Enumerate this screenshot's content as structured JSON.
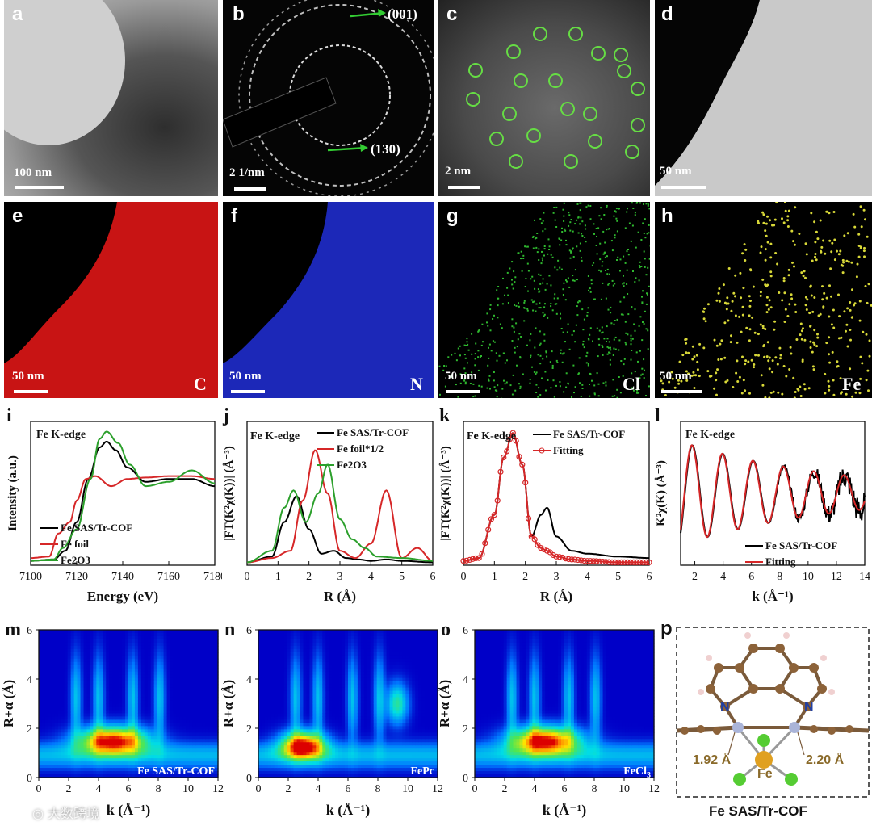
{
  "panels": {
    "a": {
      "label": "a",
      "scale": "100 nm"
    },
    "b": {
      "label": "b",
      "scale": "2 1/nm",
      "ring1": "(001)",
      "ring2": "(130)"
    },
    "c": {
      "label": "c",
      "scale": "2 nm"
    },
    "d": {
      "label": "d",
      "scale": "50 nm"
    },
    "e": {
      "label": "e",
      "scale": "50 nm",
      "element": "C"
    },
    "f": {
      "label": "f",
      "scale": "50 nm",
      "element": "N"
    },
    "g": {
      "label": "g",
      "scale": "50 nm",
      "element": "Cl"
    },
    "h": {
      "label": "h",
      "scale": "50 nm",
      "element": "Fe"
    },
    "i": {
      "label": "i"
    },
    "j": {
      "label": "j"
    },
    "k": {
      "label": "k"
    },
    "l": {
      "label": "l"
    },
    "m": {
      "label": "m",
      "tag": "Fe SAS/Tr-COF"
    },
    "n": {
      "label": "n",
      "tag": "FePc"
    },
    "o": {
      "label": "o",
      "tag": "FeCl3"
    },
    "p": {
      "label": "p",
      "n1": "N",
      "n2": "N",
      "fe": "Fe",
      "d1": "1.92 Å",
      "d2": "2.20 Å",
      "caption": "Fe SAS/Tr-COF"
    }
  },
  "watermark": "大数跨境",
  "chart_data": [
    {
      "id": "i",
      "type": "line",
      "title": "Fe K-edge",
      "xlabel": "Energy (eV)",
      "ylabel": "Intensity (a.u.)",
      "xlim": [
        7100,
        7180
      ],
      "xticks": [
        7100,
        7120,
        7140,
        7160,
        7180
      ],
      "series": [
        {
          "name": "Fe SAS/Tr-COF",
          "color": "#000000",
          "x": [
            7100,
            7110,
            7115,
            7120,
            7125,
            7130,
            7133,
            7137,
            7142,
            7150,
            7160,
            7170,
            7180
          ],
          "y": [
            0.03,
            0.04,
            0.1,
            0.3,
            0.6,
            0.82,
            0.86,
            0.8,
            0.68,
            0.58,
            0.6,
            0.6,
            0.55
          ]
        },
        {
          "name": "Fe foil",
          "color": "#d62728",
          "x": [
            7100,
            7108,
            7112,
            7117,
            7120,
            7124,
            7128,
            7135,
            7142,
            7150,
            7160,
            7170,
            7180
          ],
          "y": [
            0.05,
            0.06,
            0.22,
            0.3,
            0.45,
            0.6,
            0.62,
            0.55,
            0.6,
            0.61,
            0.62,
            0.62,
            0.6
          ]
        },
        {
          "name": "Fe2O3",
          "color": "#2ca02c",
          "x": [
            7100,
            7110,
            7114,
            7120,
            7126,
            7130,
            7133,
            7138,
            7143,
            7150,
            7160,
            7170,
            7180
          ],
          "y": [
            0.03,
            0.04,
            0.12,
            0.25,
            0.6,
            0.88,
            0.93,
            0.85,
            0.7,
            0.55,
            0.58,
            0.66,
            0.57
          ]
        }
      ]
    },
    {
      "id": "j",
      "type": "line",
      "title": "Fe K-edge",
      "xlabel": "R (Å)",
      "ylabel": "|FT(K²χ(K))| (Å⁻³)",
      "xlim": [
        0,
        6
      ],
      "xticks": [
        0,
        1,
        2,
        3,
        4,
        5,
        6
      ],
      "series": [
        {
          "name": "Fe SAS/Tr-COF",
          "color": "#000000",
          "x": [
            0,
            0.8,
            1.2,
            1.6,
            2.0,
            2.4,
            2.8,
            3.2,
            3.6,
            4.0,
            4.5,
            5.0,
            6
          ],
          "y": [
            0.02,
            0.06,
            0.3,
            0.48,
            0.25,
            0.08,
            0.1,
            0.05,
            0.04,
            0.03,
            0.04,
            0.03,
            0.02
          ]
        },
        {
          "name": "Fe foil*1/2",
          "color": "#d62728",
          "x": [
            0,
            0.8,
            1.4,
            1.8,
            2.2,
            2.6,
            3.0,
            3.5,
            4.0,
            4.5,
            5.0,
            5.5,
            6
          ],
          "y": [
            0.02,
            0.05,
            0.1,
            0.45,
            0.8,
            0.5,
            0.1,
            0.05,
            0.15,
            0.52,
            0.05,
            0.12,
            0.03
          ]
        },
        {
          "name": "Fe2O3",
          "color": "#2ca02c",
          "x": [
            0,
            0.8,
            1.2,
            1.5,
            1.9,
            2.3,
            2.6,
            3.0,
            3.4,
            3.8,
            4.2,
            5.0,
            6
          ],
          "y": [
            0.02,
            0.1,
            0.4,
            0.52,
            0.3,
            0.5,
            0.7,
            0.32,
            0.18,
            0.12,
            0.06,
            0.05,
            0.03
          ]
        }
      ]
    },
    {
      "id": "k",
      "type": "line",
      "title": "Fe K-edge",
      "xlabel": "R (Å)",
      "ylabel": "|FT(K²χ(K))| (Å⁻³)",
      "xlim": [
        0,
        6
      ],
      "xticks": [
        0,
        1,
        2,
        3,
        4,
        5,
        6
      ],
      "series": [
        {
          "name": "Fe SAS/Tr-COF",
          "color": "#000000",
          "x": [
            0,
            0.5,
            1.0,
            1.3,
            1.6,
            1.9,
            2.2,
            2.5,
            2.7,
            3.0,
            3.5,
            4.0,
            5.0,
            6
          ],
          "y": [
            0.03,
            0.05,
            0.35,
            0.75,
            0.92,
            0.7,
            0.2,
            0.35,
            0.4,
            0.2,
            0.1,
            0.08,
            0.06,
            0.05
          ]
        },
        {
          "name": "Fitting",
          "color": "#d62728",
          "marker": "circle",
          "x": [
            0,
            0.5,
            1.0,
            1.3,
            1.6,
            1.9,
            2.2,
            2.5,
            2.7,
            3.0,
            3.5,
            4.0,
            5.0,
            6
          ],
          "y": [
            0.03,
            0.05,
            0.35,
            0.75,
            0.92,
            0.7,
            0.2,
            0.12,
            0.1,
            0.06,
            0.04,
            0.03,
            0.02,
            0.02
          ]
        }
      ]
    },
    {
      "id": "l",
      "type": "line",
      "title": "Fe K-edge",
      "xlabel": "k (Å⁻¹)",
      "ylabel": "K²χ(K) (Å⁻³)",
      "xlim": [
        1,
        14
      ],
      "xticks": [
        2,
        4,
        6,
        8,
        10,
        12,
        14
      ],
      "series": [
        {
          "name": "Fe SAS/Tr-COF",
          "color": "#000000"
        },
        {
          "name": "Fitting",
          "color": "#d62728"
        }
      ]
    },
    {
      "id": "m",
      "type": "heatmap",
      "xlabel": "k (Å⁻¹)",
      "ylabel": "R+α (Å)",
      "xlim": [
        0,
        12
      ],
      "ylim": [
        0,
        6
      ],
      "xticks": [
        0,
        2,
        4,
        6,
        8,
        10,
        12
      ],
      "yticks": [
        0,
        2,
        4,
        6
      ],
      "peak": {
        "k": 5.0,
        "r": 1.5
      }
    },
    {
      "id": "n",
      "type": "heatmap",
      "xlabel": "k (Å⁻¹)",
      "ylabel": "R+α (Å)",
      "xlim": [
        0,
        12
      ],
      "ylim": [
        0,
        6
      ],
      "xticks": [
        0,
        2,
        4,
        6,
        8,
        10,
        12
      ],
      "yticks": [
        0,
        2,
        4,
        6
      ],
      "peak": {
        "k": 3.0,
        "r": 1.3
      }
    },
    {
      "id": "o",
      "type": "heatmap",
      "xlabel": "k (Å⁻¹)",
      "ylabel": "R+α (Å)",
      "xlim": [
        0,
        12
      ],
      "ylim": [
        0,
        6
      ],
      "xticks": [
        0,
        2,
        4,
        6,
        8,
        10,
        12
      ],
      "yticks": [
        0,
        2,
        4,
        6
      ],
      "peak": {
        "k": 4.7,
        "r": 1.5
      }
    }
  ]
}
